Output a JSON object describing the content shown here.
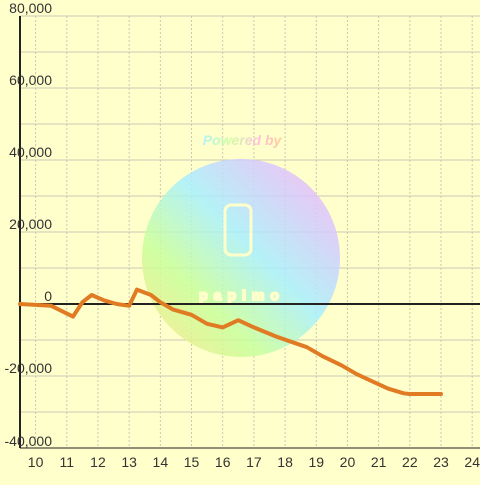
{
  "chart_data": {
    "type": "line",
    "x_ticks": [
      "10",
      "11",
      "12",
      "13",
      "14",
      "15",
      "16",
      "17",
      "18",
      "19",
      "20",
      "21",
      "22",
      "23",
      "24"
    ],
    "y_ticks": [
      "80,000",
      "60,000",
      "40,000",
      "20,000",
      "0",
      "-20,000",
      "-40,000"
    ],
    "xlim": [
      9.5,
      24.25
    ],
    "ylim": [
      -40000,
      80000
    ],
    "grid": true,
    "series": [
      {
        "color": "#e07b24",
        "x": [
          9.5,
          10.5,
          11.2,
          11.5,
          11.8,
          12.2,
          12.6,
          13.0,
          13.25,
          13.7,
          14.0,
          14.4,
          15.0,
          15.5,
          16.0,
          16.5,
          17.0,
          17.7,
          18.2,
          18.7,
          19.2,
          19.8,
          20.3,
          20.8,
          21.3,
          21.8,
          22.0,
          22.5,
          23.0
        ],
        "y": [
          0,
          -500,
          -3500,
          500,
          2500,
          1000,
          0,
          -500,
          4000,
          2500,
          500,
          -1500,
          -3000,
          -5500,
          -6500,
          -4500,
          -6500,
          -9000,
          -10500,
          -12000,
          -14500,
          -17000,
          -19500,
          -21500,
          -23500,
          -24800,
          -25000,
          -25000,
          -25000
        ]
      }
    ]
  },
  "watermark": {
    "title": "Powered by",
    "brand": "papimo"
  },
  "colors": {
    "background": "#ffffcc",
    "line": "#e07b24",
    "grid": "#c8c8b4",
    "axis": "#222222"
  }
}
